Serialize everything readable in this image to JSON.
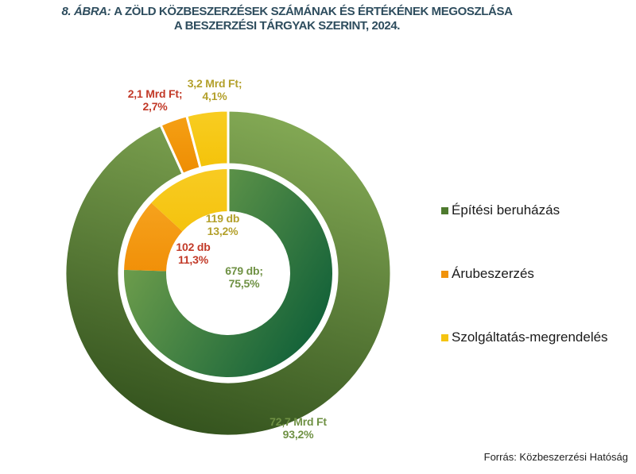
{
  "title": {
    "prefix": "8. ÁBRA:",
    "line1": "A ZÖLD KÖZBESZERZÉSEK SZÁMÁNAK ÉS ÉRTÉKÉNEK MEGOSZLÁSA",
    "line2": "A BESZERZÉSI TÁRGYAK SZERINT, 2024."
  },
  "source": "Forrás: Közbeszerzési Hatóság",
  "legend": {
    "items": [
      {
        "label": "Építési beruházás"
      },
      {
        "label": "Árubeszerzés"
      },
      {
        "label": "Szolgáltatás-megrendelés"
      }
    ]
  },
  "callouts": {
    "outer_orange": {
      "line1": "2,1 Mrd Ft;",
      "line2": "2,7%"
    },
    "outer_yellow": {
      "line1": "3,2 Mrd Ft;",
      "line2": "4,1%"
    },
    "outer_green": {
      "line1": "72,7 Mrd Ft",
      "line2": "93,2%"
    },
    "inner_yellow": {
      "line1": "119 db",
      "line2": "13,2%"
    },
    "inner_orange": {
      "line1": "102 db",
      "line2": "11,3%"
    },
    "inner_green": {
      "line1": "679 db;",
      "line2": "75,5%"
    }
  },
  "colors": {
    "title": "#2e4d5e",
    "label_red": "#c23a28",
    "label_gold": "#b3a02b",
    "label_green": "#6f9144",
    "legend_text": "#1a1a1a",
    "source_text": "#1f1f1f",
    "category_colors": [
      "#4e7a2e",
      "#f0930b",
      "#f5c411"
    ],
    "slices": {
      "outer": [
        {
          "from": "#84aa55",
          "to": "#33521d",
          "dir": [
            0.65,
            0,
            0.35,
            1
          ]
        },
        {
          "from": "#f5a014",
          "to": "#ee8d03",
          "dir": [
            0,
            0,
            0,
            1
          ]
        },
        {
          "from": "#f8cd22",
          "to": "#f4c30a",
          "dir": [
            0,
            0,
            0,
            1
          ]
        }
      ],
      "inner": [
        {
          "from": "#7aa54e",
          "to": "#0d5e38",
          "dir": [
            0,
            0.2,
            1,
            0.8
          ]
        },
        {
          "from": "#f6a21d",
          "to": "#f19008",
          "dir": [
            0,
            0,
            0,
            1
          ]
        },
        {
          "from": "#f8cb22",
          "to": "#f4c30e",
          "dir": [
            0,
            0,
            0,
            1
          ]
        }
      ]
    }
  },
  "chart_data": {
    "type": "donut",
    "title": "8. ÁBRA: A ZÖLD KÖZBESZERZÉSEK SZÁMÁNAK ÉS ÉRTÉKÉNEK MEGOSZLÁSA A BESZERZÉSI TÁRGYAK SZERINT, 2024.",
    "categories": [
      "Építési beruházás",
      "Árubeszerzés",
      "Szolgáltatás-megrendelés"
    ],
    "category_ids": [
      "epitesi-beruhazas",
      "arubeszerzes",
      "szolgaltatas-megrendeles"
    ],
    "rings": [
      {
        "id": "outer",
        "unit": "Mrd Ft",
        "values": [
          72.7,
          2.1,
          3.2
        ],
        "percents": [
          93.2,
          2.7,
          4.1
        ]
      },
      {
        "id": "inner",
        "unit": "db",
        "values": [
          679,
          102,
          119
        ],
        "percents": [
          75.5,
          11.3,
          13.2
        ]
      }
    ],
    "start_angle_deg": 0,
    "direction": "clockwise",
    "legend_position": "right",
    "source": "Forrás: Közbeszerzési Hatóság"
  }
}
